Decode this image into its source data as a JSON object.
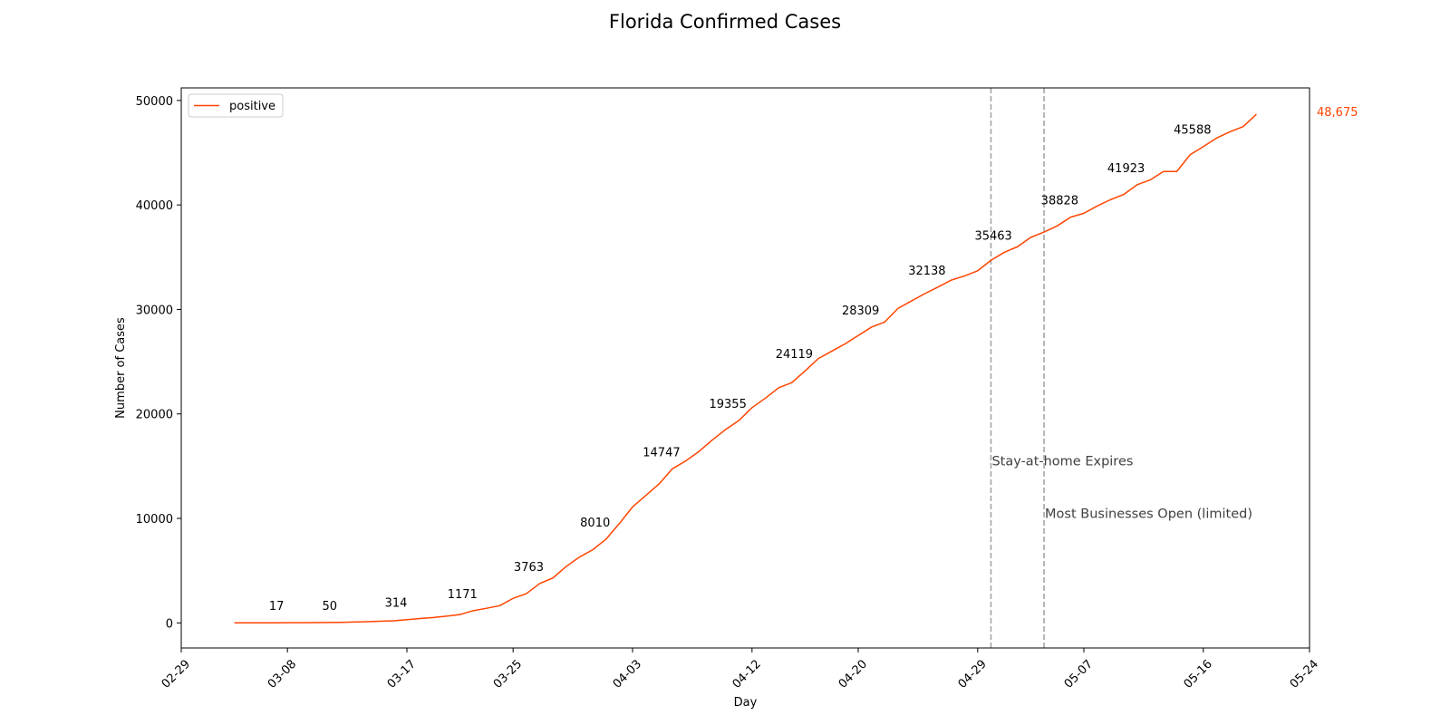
{
  "chart_data": {
    "type": "line",
    "title": "Florida Confirmed Cases",
    "xlabel": "Day",
    "ylabel": "Number of Cases",
    "xlim": [
      "2020-02-29",
      "2020-05-24"
    ],
    "ylim": [
      -2400,
      51200
    ],
    "x_ticks": [
      "02-29",
      "03-08",
      "03-17",
      "03-25",
      "04-03",
      "04-12",
      "04-20",
      "04-29",
      "05-07",
      "05-16",
      "05-24"
    ],
    "x_tick_dates": [
      "2020-02-29",
      "2020-03-08",
      "2020-03-17",
      "2020-03-25",
      "2020-04-03",
      "2020-04-12",
      "2020-04-20",
      "2020-04-29",
      "2020-05-07",
      "2020-05-16",
      "2020-05-24"
    ],
    "y_ticks": [
      0,
      10000,
      20000,
      30000,
      40000,
      50000
    ],
    "y_tick_labels": [
      "0",
      "10000",
      "20000",
      "30000",
      "40000",
      "50000"
    ],
    "legend": {
      "position": "top-left",
      "entries": [
        "positive"
      ]
    },
    "grid": false,
    "series": [
      {
        "name": "positive",
        "color": "#ff4500",
        "x": [
          "2020-03-04",
          "2020-03-05",
          "2020-03-06",
          "2020-03-07",
          "2020-03-08",
          "2020-03-09",
          "2020-03-10",
          "2020-03-11",
          "2020-03-12",
          "2020-03-13",
          "2020-03-14",
          "2020-03-15",
          "2020-03-16",
          "2020-03-17",
          "2020-03-18",
          "2020-03-19",
          "2020-03-20",
          "2020-03-21",
          "2020-03-22",
          "2020-03-23",
          "2020-03-24",
          "2020-03-25",
          "2020-03-26",
          "2020-03-27",
          "2020-03-28",
          "2020-03-29",
          "2020-03-30",
          "2020-03-31",
          "2020-04-01",
          "2020-04-02",
          "2020-04-03",
          "2020-04-04",
          "2020-04-05",
          "2020-04-06",
          "2020-04-07",
          "2020-04-08",
          "2020-04-09",
          "2020-04-10",
          "2020-04-11",
          "2020-04-12",
          "2020-04-13",
          "2020-04-14",
          "2020-04-15",
          "2020-04-16",
          "2020-04-17",
          "2020-04-18",
          "2020-04-19",
          "2020-04-20",
          "2020-04-21",
          "2020-04-22",
          "2020-04-23",
          "2020-04-24",
          "2020-04-25",
          "2020-04-26",
          "2020-04-27",
          "2020-04-28",
          "2020-04-29",
          "2020-04-30",
          "2020-05-01",
          "2020-05-02",
          "2020-05-03",
          "2020-05-04",
          "2020-05-05",
          "2020-05-06",
          "2020-05-07",
          "2020-05-08",
          "2020-05-09",
          "2020-05-10",
          "2020-05-11",
          "2020-05-12",
          "2020-05-13",
          "2020-05-14",
          "2020-05-15",
          "2020-05-16",
          "2020-05-17",
          "2020-05-18",
          "2020-05-19",
          "2020-05-20"
        ],
        "values": [
          3,
          5,
          8,
          12,
          17,
          22,
          28,
          35,
          50,
          80,
          120,
          160,
          200,
          314,
          420,
          520,
          650,
          800,
          1171,
          1400,
          1650,
          2350,
          2800,
          3763,
          4300,
          5400,
          6300,
          7000,
          8010,
          9500,
          11100,
          12200,
          13300,
          14747,
          15500,
          16400,
          17500,
          18500,
          19355,
          20600,
          21500,
          22500,
          23000,
          24119,
          25300,
          26000,
          26700,
          27500,
          28309,
          28800,
          30100,
          30800,
          31500,
          32138,
          32800,
          33200,
          33700,
          34700,
          35463,
          36000,
          36900,
          37400,
          38000,
          38828,
          39200,
          39900,
          40500,
          41000,
          41923,
          42400,
          43200,
          43200,
          44800,
          45588,
          46400,
          47000,
          47500,
          48675
        ]
      }
    ],
    "data_labels": [
      {
        "x": "2020-03-08",
        "y": 17,
        "label": "17"
      },
      {
        "x": "2020-03-12",
        "y": 50,
        "label": "50"
      },
      {
        "x": "2020-03-17",
        "y": 314,
        "label": "314"
      },
      {
        "x": "2020-03-22",
        "y": 1171,
        "label": "1171"
      },
      {
        "x": "2020-03-27",
        "y": 3763,
        "label": "3763"
      },
      {
        "x": "2020-04-01",
        "y": 8010,
        "label": "8010"
      },
      {
        "x": "2020-04-06",
        "y": 14747,
        "label": "14747"
      },
      {
        "x": "2020-04-11",
        "y": 19355,
        "label": "19355"
      },
      {
        "x": "2020-04-16",
        "y": 24119,
        "label": "24119"
      },
      {
        "x": "2020-04-21",
        "y": 28309,
        "label": "28309"
      },
      {
        "x": "2020-04-26",
        "y": 32138,
        "label": "32138"
      },
      {
        "x": "2020-05-01",
        "y": 35463,
        "label": "35463"
      },
      {
        "x": "2020-05-06",
        "y": 38828,
        "label": "38828"
      },
      {
        "x": "2020-05-11",
        "y": 41923,
        "label": "41923"
      },
      {
        "x": "2020-05-16",
        "y": 45588,
        "label": "45588"
      }
    ],
    "last_value_label": {
      "x": "2020-05-20",
      "y": 48675,
      "label": "48,675",
      "color": "#ff4500"
    },
    "annotations": [
      {
        "x": "2020-04-30",
        "label": "Stay-at-home Expires",
        "label_y": 15500
      },
      {
        "x": "2020-05-04",
        "label": "Most Businesses Open (limited)",
        "label_y": 10500
      }
    ],
    "annotation_line_color": "#a0a0a0",
    "annotation_text_color": "#404040"
  }
}
